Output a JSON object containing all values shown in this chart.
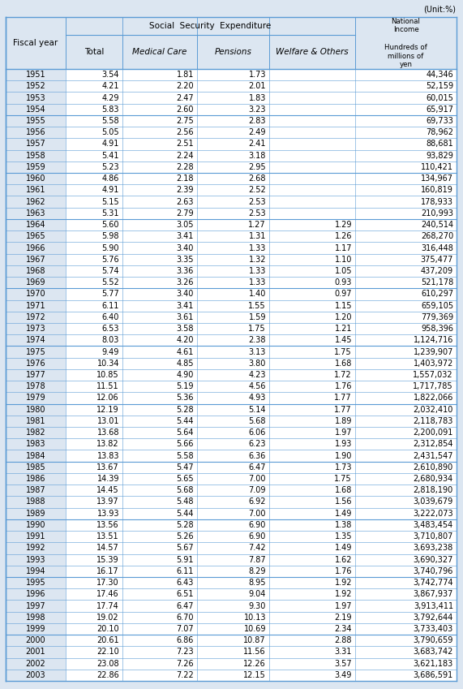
{
  "title_unit": "(Unit:%)",
  "rows": [
    [
      "1951",
      "3.54",
      "1.81",
      "1.73",
      "",
      "44,346"
    ],
    [
      "1952",
      "4.21",
      "2.20",
      "2.01",
      "",
      "52,159"
    ],
    [
      "1953",
      "4.29",
      "2.47",
      "1.83",
      "",
      "60,015"
    ],
    [
      "1954",
      "5.83",
      "2.60",
      "3.23",
      "",
      "65,917"
    ],
    [
      "1955",
      "5.58",
      "2.75",
      "2.83",
      "",
      "69,733"
    ],
    [
      "1956",
      "5.05",
      "2.56",
      "2.49",
      "",
      "78,962"
    ],
    [
      "1957",
      "4.91",
      "2.51",
      "2.41",
      "",
      "88,681"
    ],
    [
      "1958",
      "5.41",
      "2.24",
      "3.18",
      "",
      "93,829"
    ],
    [
      "1959",
      "5.23",
      "2.28",
      "2.95",
      "",
      "110,421"
    ],
    [
      "1960",
      "4.86",
      "2.18",
      "2.68",
      "",
      "134,967"
    ],
    [
      "1961",
      "4.91",
      "2.39",
      "2.52",
      "",
      "160,819"
    ],
    [
      "1962",
      "5.15",
      "2.63",
      "2.53",
      "",
      "178,933"
    ],
    [
      "1963",
      "5.31",
      "2.79",
      "2.53",
      "",
      "210,993"
    ],
    [
      "1964",
      "5.60",
      "3.05",
      "1.27",
      "1.29",
      "240,514"
    ],
    [
      "1965",
      "5.98",
      "3.41",
      "1.31",
      "1.26",
      "268,270"
    ],
    [
      "1966",
      "5.90",
      "3.40",
      "1.33",
      "1.17",
      "316,448"
    ],
    [
      "1967",
      "5.76",
      "3.35",
      "1.32",
      "1.10",
      "375,477"
    ],
    [
      "1968",
      "5.74",
      "3.36",
      "1.33",
      "1.05",
      "437,209"
    ],
    [
      "1969",
      "5.52",
      "3.26",
      "1.33",
      "0.93",
      "521,178"
    ],
    [
      "1970",
      "5.77",
      "3.40",
      "1.40",
      "0.97",
      "610,297"
    ],
    [
      "1971",
      "6.11",
      "3.41",
      "1.55",
      "1.15",
      "659,105"
    ],
    [
      "1972",
      "6.40",
      "3.61",
      "1.59",
      "1.20",
      "779,369"
    ],
    [
      "1973",
      "6.53",
      "3.58",
      "1.75",
      "1.21",
      "958,396"
    ],
    [
      "1974",
      "8.03",
      "4.20",
      "2.38",
      "1.45",
      "1,124,716"
    ],
    [
      "1975",
      "9.49",
      "4.61",
      "3.13",
      "1.75",
      "1,239,907"
    ],
    [
      "1976",
      "10.34",
      "4.85",
      "3.80",
      "1.68",
      "1,403,972"
    ],
    [
      "1977",
      "10.85",
      "4.90",
      "4.23",
      "1.72",
      "1,557,032"
    ],
    [
      "1978",
      "11.51",
      "5.19",
      "4.56",
      "1.76",
      "1,717,785"
    ],
    [
      "1979",
      "12.06",
      "5.36",
      "4.93",
      "1.77",
      "1,822,066"
    ],
    [
      "1980",
      "12.19",
      "5.28",
      "5.14",
      "1.77",
      "2,032,410"
    ],
    [
      "1981",
      "13.01",
      "5.44",
      "5.68",
      "1.89",
      "2,118,783"
    ],
    [
      "1982",
      "13.68",
      "5.64",
      "6.06",
      "1.97",
      "2,200,091"
    ],
    [
      "1983",
      "13.82",
      "5.66",
      "6.23",
      "1.93",
      "2,312,854"
    ],
    [
      "1984",
      "13.83",
      "5.58",
      "6.36",
      "1.90",
      "2,431,547"
    ],
    [
      "1985",
      "13.67",
      "5.47",
      "6.47",
      "1.73",
      "2,610,890"
    ],
    [
      "1986",
      "14.39",
      "5.65",
      "7.00",
      "1.75",
      "2,680,934"
    ],
    [
      "1987",
      "14.45",
      "5.68",
      "7.09",
      "1.68",
      "2,818,190"
    ],
    [
      "1988",
      "13.97",
      "5.48",
      "6.92",
      "1.56",
      "3,039,679"
    ],
    [
      "1989",
      "13.93",
      "5.44",
      "7.00",
      "1.49",
      "3,222,073"
    ],
    [
      "1990",
      "13.56",
      "5.28",
      "6.90",
      "1.38",
      "3,483,454"
    ],
    [
      "1991",
      "13.51",
      "5.26",
      "6.90",
      "1.35",
      "3,710,807"
    ],
    [
      "1992",
      "14.57",
      "5.67",
      "7.42",
      "1.49",
      "3,693,238"
    ],
    [
      "1993",
      "15.39",
      "5.91",
      "7.87",
      "1.62",
      "3,690,327"
    ],
    [
      "1994",
      "16.17",
      "6.11",
      "8.29",
      "1.76",
      "3,740,796"
    ],
    [
      "1995",
      "17.30",
      "6.43",
      "8.95",
      "1.92",
      "3,742,774"
    ],
    [
      "1996",
      "17.46",
      "6.51",
      "9.04",
      "1.92",
      "3,867,937"
    ],
    [
      "1997",
      "17.74",
      "6.47",
      "9.30",
      "1.97",
      "3,913,411"
    ],
    [
      "1998",
      "19.02",
      "6.70",
      "10.13",
      "2.19",
      "3,792,644"
    ],
    [
      "1999",
      "20.10",
      "7.07",
      "10.69",
      "2.34",
      "3,733,403"
    ],
    [
      "2000",
      "20.61",
      "6.86",
      "10.87",
      "2.88",
      "3,790,659"
    ],
    [
      "2001",
      "22.10",
      "7.23",
      "11.56",
      "3.31",
      "3,683,742"
    ],
    [
      "2002",
      "23.08",
      "7.26",
      "12.26",
      "3.57",
      "3,621,183"
    ],
    [
      "2003",
      "22.86",
      "7.22",
      "12.15",
      "3.49",
      "3,686,591"
    ]
  ],
  "group_end_rows": [
    4,
    9,
    13,
    19,
    24,
    29,
    34,
    39,
    44,
    49
  ],
  "bg_color": "#dce6f1",
  "border_color": "#5b9bd5",
  "cell_bg": "#ffffff",
  "font_size": 7.0,
  "header_font_size": 7.5
}
